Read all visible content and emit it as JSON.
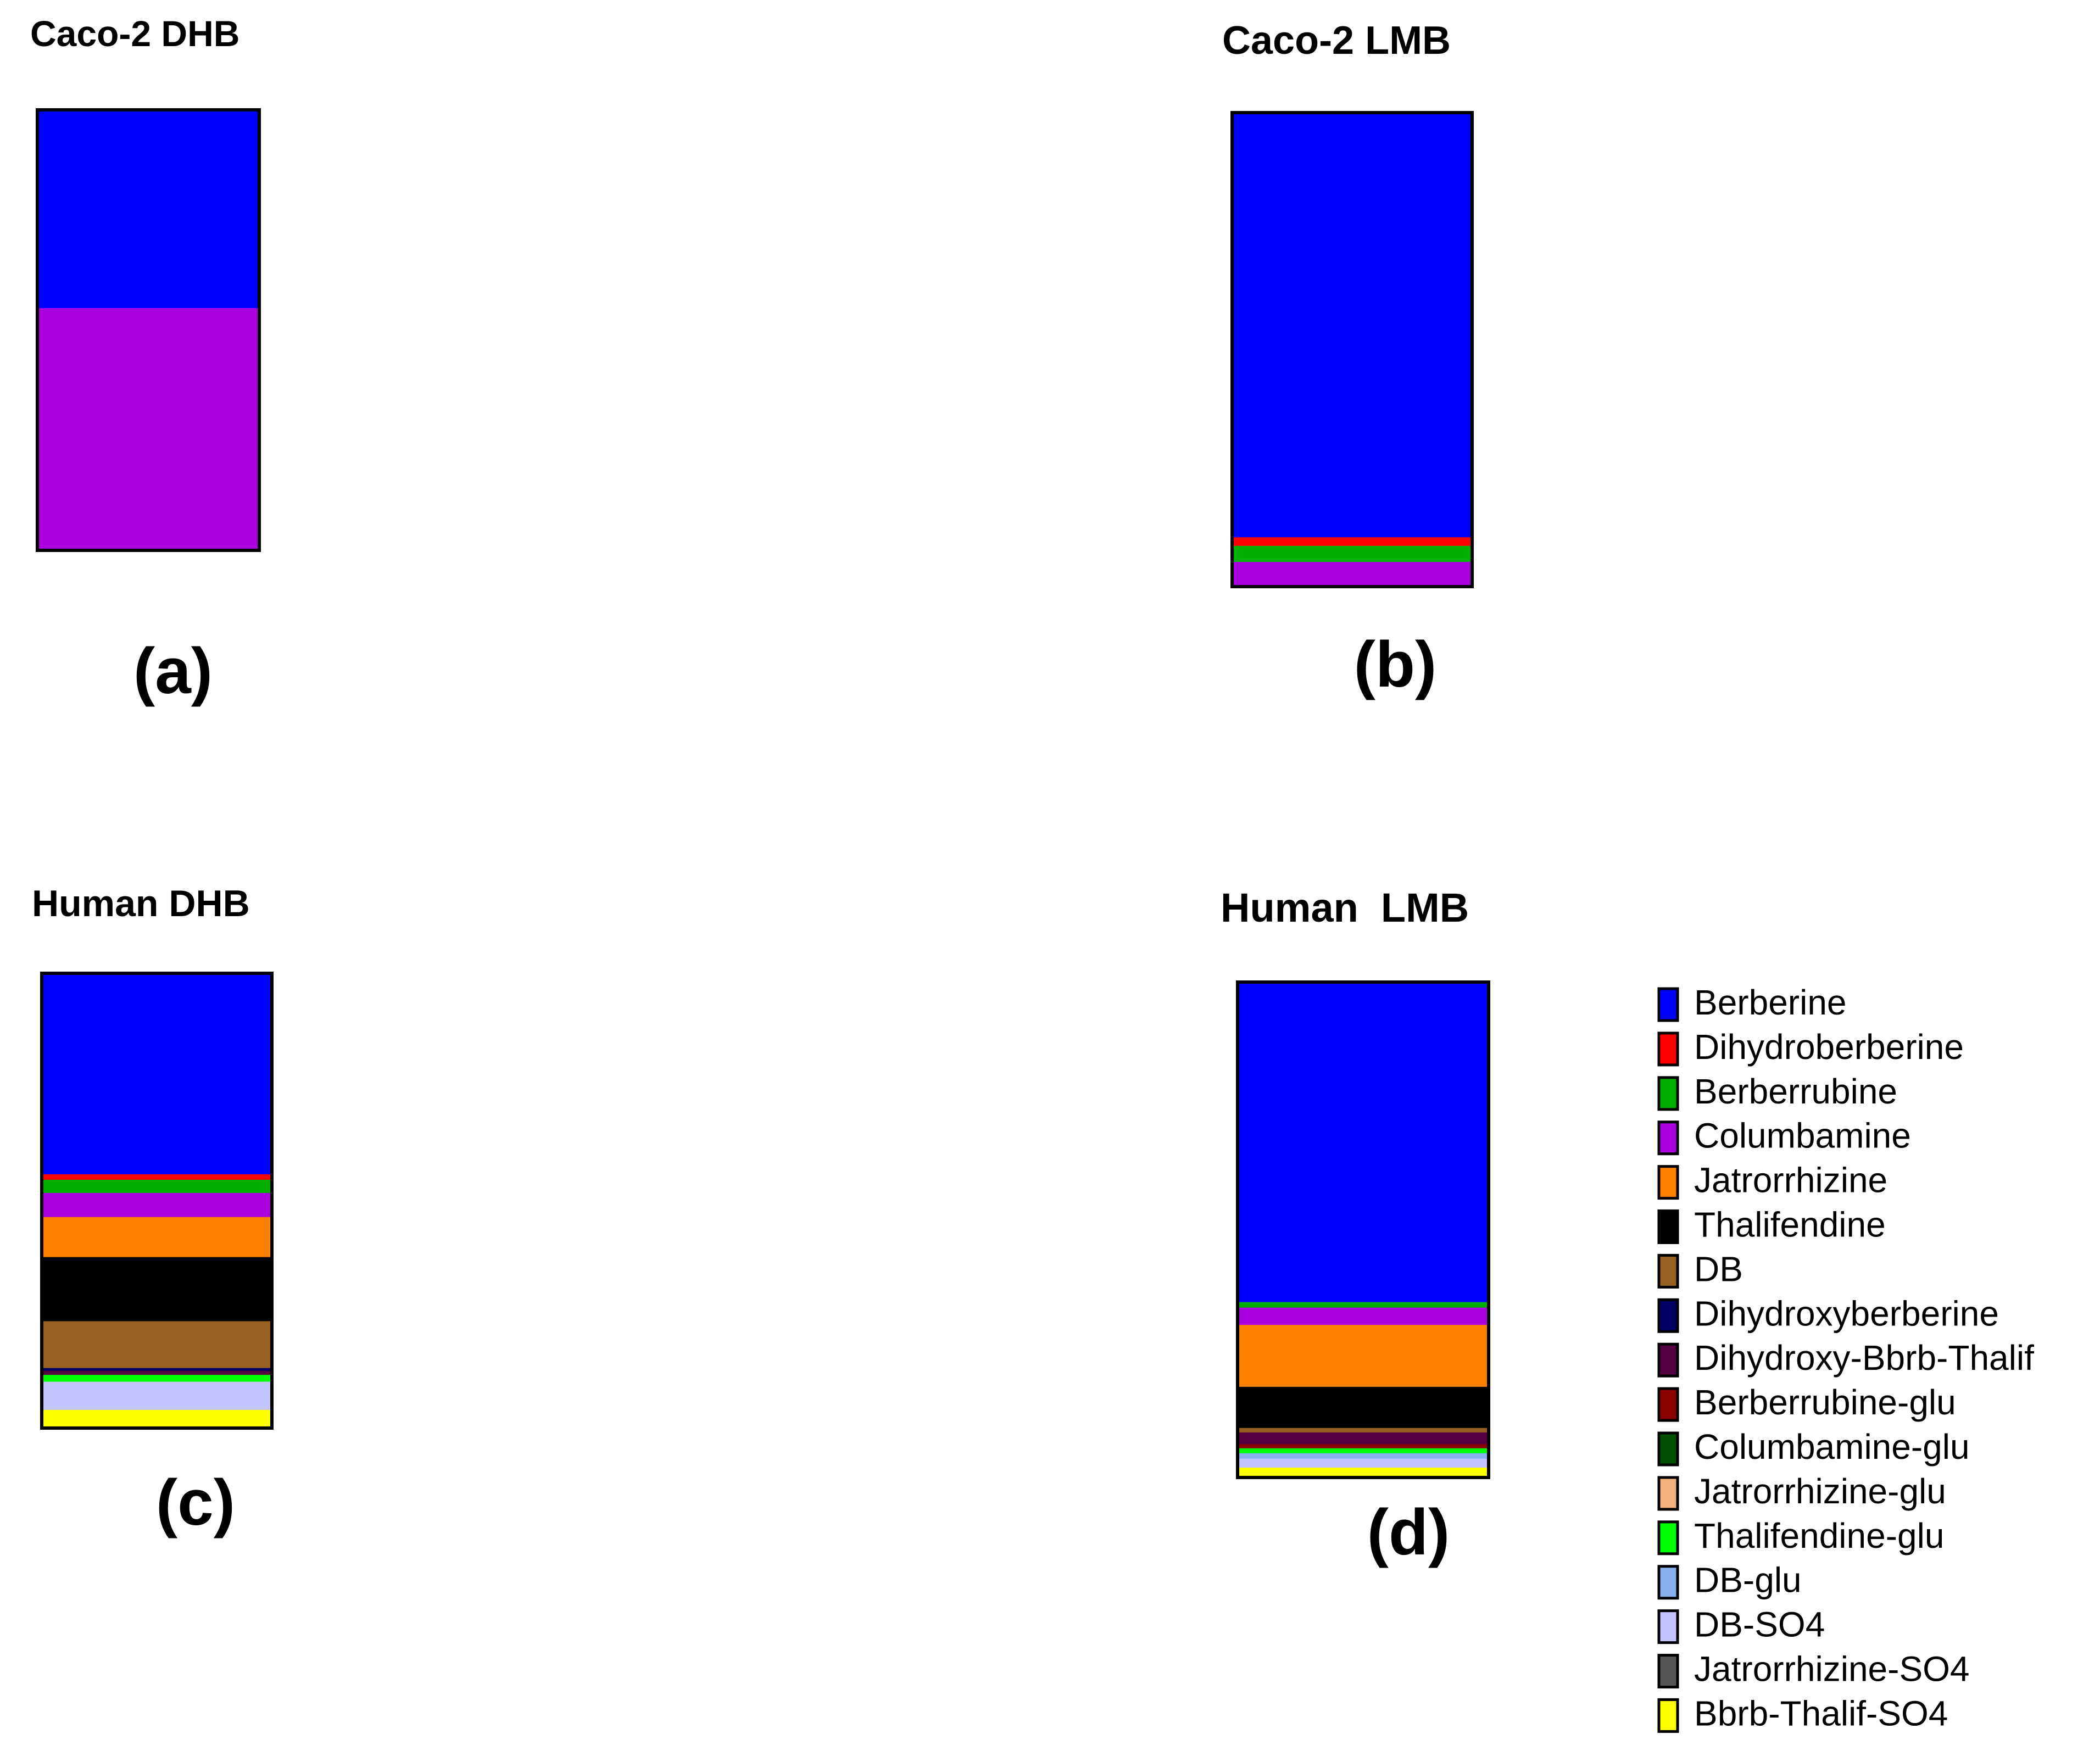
{
  "chart_data": [
    {
      "type": "stacked-bar",
      "title": "Caco-2 DHB",
      "label": "(a)",
      "ylim": [
        0,
        100
      ],
      "segments": [
        {
          "name": "Berberine",
          "value": 45
        },
        {
          "name": "Columbamine",
          "value": 55
        }
      ]
    },
    {
      "type": "stacked-bar",
      "title": "Caco-2 LMB",
      "label": "(b)",
      "ylim": [
        0,
        100
      ],
      "segments": [
        {
          "name": "Berberine",
          "value": 89.6
        },
        {
          "name": "Dihydroberberine",
          "value": 1.8
        },
        {
          "name": "Berberrubine",
          "value": 3.4
        },
        {
          "name": "Columbamine",
          "value": 5.2
        }
      ]
    },
    {
      "type": "stacked-bar",
      "title": "Human DHB",
      "label": "(c)",
      "ylim": [
        0,
        100
      ],
      "segments": [
        {
          "name": "Berberine",
          "value": 44.2
        },
        {
          "name": "Dihydroberberine",
          "value": 1.2
        },
        {
          "name": "Berberrubine",
          "value": 2.9
        },
        {
          "name": "Columbamine",
          "value": 5.3
        },
        {
          "name": "Jatrorrhizine",
          "value": 8.8
        },
        {
          "name": "Thalifendine",
          "value": 14.1
        },
        {
          "name": "DB",
          "value": 10.3
        },
        {
          "name": "Dihydroxyberberine",
          "value": 0.6
        },
        {
          "name": "Dihydroxy-Bbrb-Thalif",
          "value": 0.9
        },
        {
          "name": "Thalifendine-glu",
          "value": 1.5
        },
        {
          "name": "DB-SO4",
          "value": 6.2
        },
        {
          "name": "Bbrb-Thalif-SO4",
          "value": 4.0
        }
      ]
    },
    {
      "type": "stacked-bar",
      "title": "Human  LMB",
      "label": "(d)",
      "ylim": [
        0,
        100
      ],
      "segments": [
        {
          "name": "Berberine",
          "value": 64.6
        },
        {
          "name": "Berberrubine",
          "value": 1.1
        },
        {
          "name": "Columbamine",
          "value": 3.5
        },
        {
          "name": "Jatrorrhizine",
          "value": 12.5
        },
        {
          "name": "Thalifendine",
          "value": 8.3
        },
        {
          "name": "DB",
          "value": 0.9
        },
        {
          "name": "Dihydroxy-Bbrb-Thalif",
          "value": 2.4
        },
        {
          "name": "Berberrubine-glu",
          "value": 0.8
        },
        {
          "name": "Thalifendine-glu",
          "value": 1.0
        },
        {
          "name": "DB-glu",
          "value": 1.1
        },
        {
          "name": "DB-SO4",
          "value": 1.8
        },
        {
          "name": "Bbrb-Thalif-SO4",
          "value": 2.0
        }
      ]
    }
  ],
  "legend": {
    "placement": "bottom-right",
    "entries": [
      {
        "name": "Berberine",
        "color": "#0000FF"
      },
      {
        "name": "Dihydroberberine",
        "color": "#FF0000"
      },
      {
        "name": "Berberrubine",
        "color": "#00B000"
      },
      {
        "name": "Columbamine",
        "color": "#AA00E0"
      },
      {
        "name": "Jatrorrhizine",
        "color": "#FF8000"
      },
      {
        "name": "Thalifendine",
        "color": "#000000"
      },
      {
        "name": "DB",
        "color": "#956020"
      },
      {
        "name": "Dihydroxyberberine",
        "color": "#000066"
      },
      {
        "name": "Dihydroxy-Bbrb-Thalif",
        "color": "#550040"
      },
      {
        "name": "Berberrubine-glu",
        "color": "#8B0000"
      },
      {
        "name": "Columbamine-glu",
        "color": "#005000"
      },
      {
        "name": "Jatrorrhizine-glu",
        "color": "#F2B07C"
      },
      {
        "name": "Thalifendine-glu",
        "color": "#00FF00"
      },
      {
        "name": "DB-glu",
        "color": "#88B0EE"
      },
      {
        "name": "DB-SO4",
        "color": "#C4C4FF"
      },
      {
        "name": "Jatrorrhizine-SO4",
        "color": "#555555"
      },
      {
        "name": "Bbrb-Thalif-SO4",
        "color": "#FFFF00"
      }
    ]
  }
}
